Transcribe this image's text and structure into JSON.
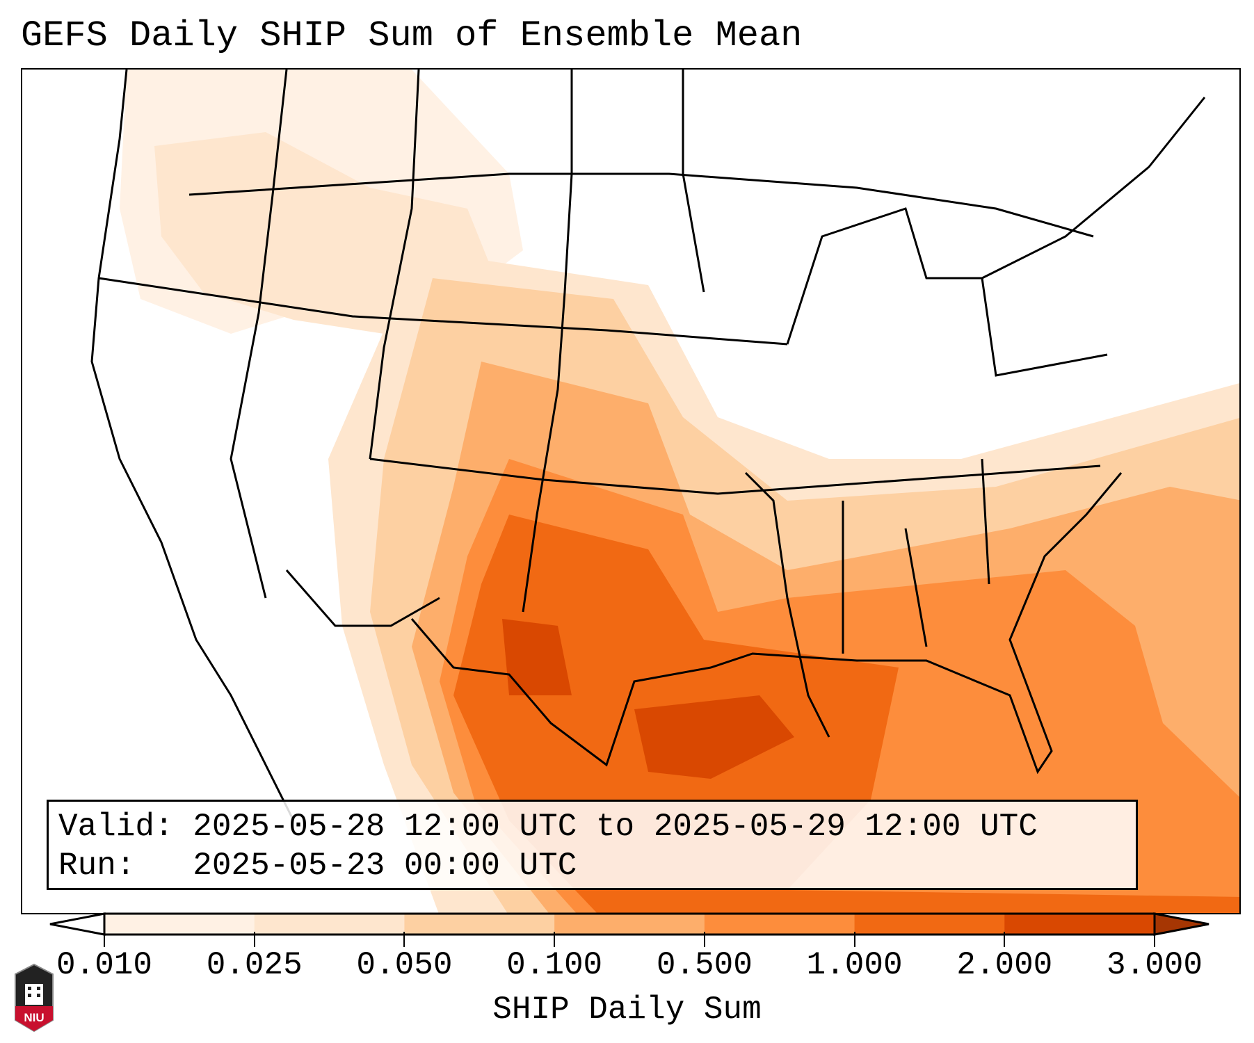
{
  "title": "GEFS Daily SHIP Sum of Ensemble Mean",
  "info": {
    "valid_label": "Valid:",
    "valid_value": "2025-05-28 12:00 UTC to 2025-05-29 12:00 UTC",
    "run_label": "Run:",
    "run_value": "2025-05-23 00:00 UTC"
  },
  "colorbar": {
    "label": "SHIP Daily Sum",
    "ticks": [
      "0.010",
      "0.025",
      "0.050",
      "0.100",
      "0.500",
      "1.000",
      "2.000",
      "3.000"
    ],
    "colors": [
      "#fff1e4",
      "#fee6ce",
      "#fdd0a2",
      "#fdae6b",
      "#fd8d3c",
      "#f16913",
      "#d94801"
    ],
    "under_color": "#ffffff",
    "over_color": "#a63603"
  },
  "logo": {
    "text": "NIU"
  }
}
